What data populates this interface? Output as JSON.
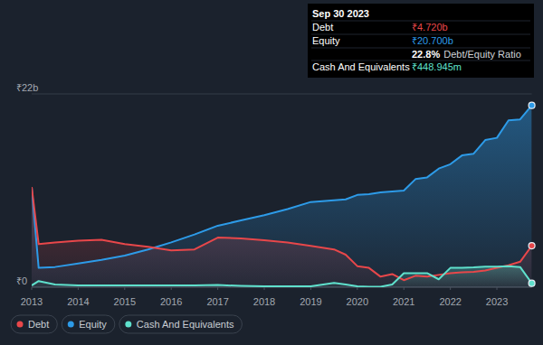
{
  "chart_data": {
    "type": "area",
    "x": [
      2013,
      2013.15,
      2013.5,
      2014,
      2014.5,
      2015,
      2015.5,
      2016,
      2016.5,
      2017,
      2017.5,
      2018,
      2018.5,
      2019,
      2019.5,
      2019.75,
      2020,
      2020.25,
      2020.5,
      2020.75,
      2021,
      2021.25,
      2021.5,
      2021.75,
      2022,
      2022.25,
      2022.5,
      2022.75,
      2023,
      2023.25,
      2023.5,
      2023.75
    ],
    "series": [
      {
        "name": "Debt",
        "color": "#e8474a",
        "values": [
          11.4,
          4.9,
          5.1,
          5.3,
          5.4,
          4.9,
          4.6,
          4.2,
          4.3,
          5.65,
          5.55,
          5.35,
          5.1,
          4.7,
          4.3,
          3.7,
          2.4,
          2.2,
          1.2,
          1.5,
          0.8,
          1.3,
          1.2,
          1.4,
          1.6,
          1.7,
          1.75,
          1.9,
          2.2,
          2.5,
          2.9,
          4.72
        ]
      },
      {
        "name": "Equity",
        "color": "#2d9be8",
        "values": [
          11.4,
          2.2,
          2.3,
          2.7,
          3.1,
          3.6,
          4.3,
          5.1,
          6.0,
          7.0,
          7.6,
          8.2,
          8.9,
          9.7,
          9.9,
          10.0,
          10.5,
          10.6,
          10.8,
          10.9,
          11.0,
          12.3,
          12.5,
          13.5,
          14.0,
          15.0,
          15.2,
          16.75,
          17.0,
          19.0,
          19.1,
          20.7
        ]
      },
      {
        "name": "Cash And Equivalents",
        "color": "#5fe0cc",
        "values": [
          0.2,
          0.7,
          0.3,
          0.2,
          0.2,
          0.2,
          0.2,
          0.2,
          0.2,
          0.25,
          0.15,
          0.1,
          0.1,
          0.1,
          0.5,
          0.3,
          0.1,
          0.05,
          0.05,
          0.3,
          1.6,
          1.6,
          1.6,
          0.9,
          2.2,
          2.2,
          2.25,
          2.35,
          2.35,
          2.4,
          2.3,
          0.449
        ]
      }
    ],
    "xlim": [
      2013,
      2023.75
    ],
    "xticks": [
      2013,
      2014,
      2015,
      2016,
      2017,
      2018,
      2019,
      2020,
      2021,
      2022,
      2023
    ],
    "ylim": [
      0,
      22
    ],
    "yticks": [
      {
        "value": 0,
        "label": "₹0"
      },
      {
        "value": 22,
        "label": "₹22b"
      }
    ],
    "grid": true,
    "legend": "bottom",
    "annotations": [
      {
        "text": "Sep 30 2023"
      },
      {
        "text": "Debt",
        "detail": "₹4.720b",
        "color": "#e8474a"
      },
      {
        "text": "Equity",
        "detail": "₹20.700b",
        "color": "#2d9be8"
      },
      {
        "text": "Debt/Equity Ratio",
        "detail": "22.8%"
      },
      {
        "text": "Cash And Equivalents",
        "detail": "₹448.945m",
        "color": "#5fe0cc"
      }
    ]
  }
}
